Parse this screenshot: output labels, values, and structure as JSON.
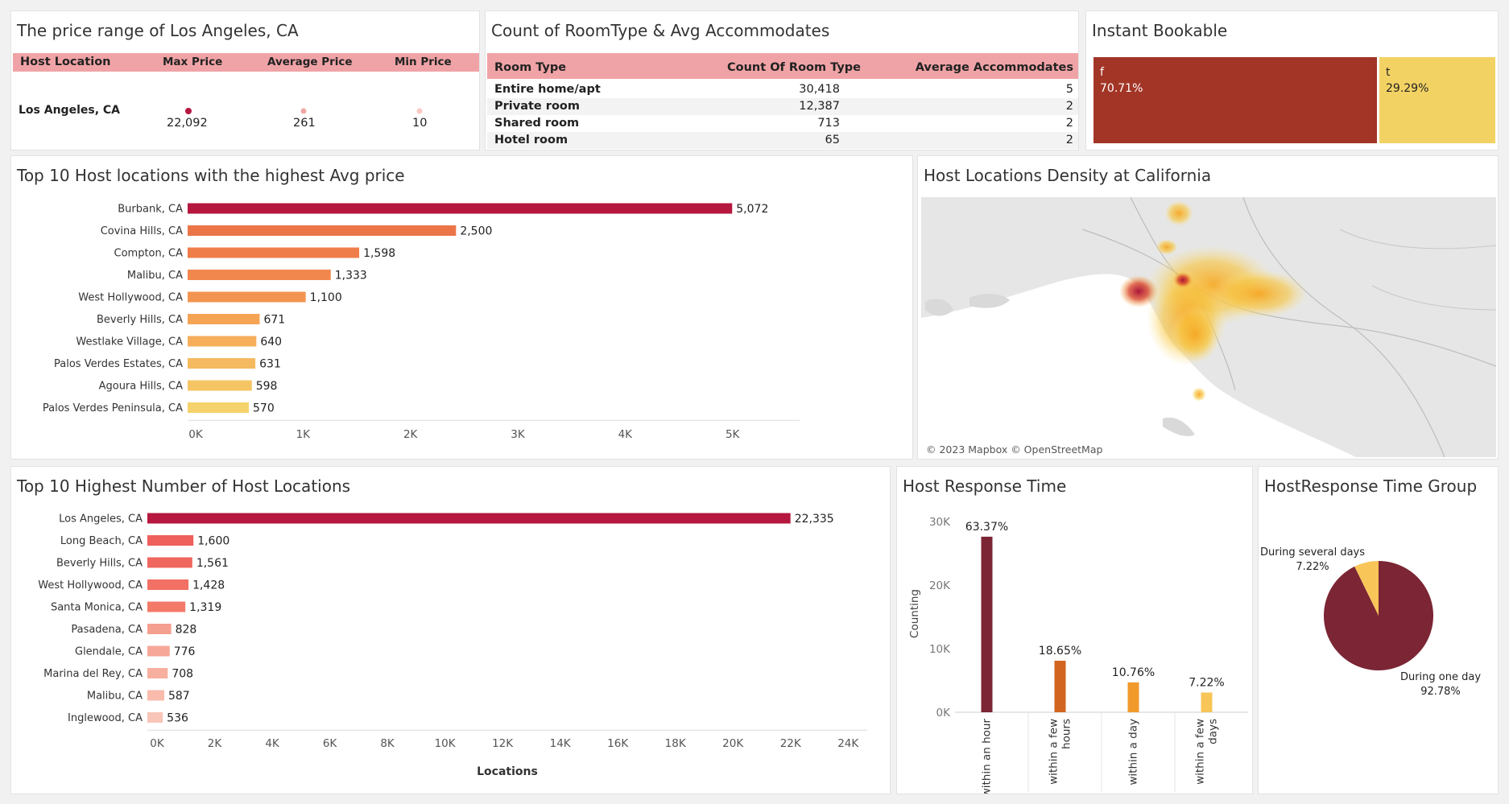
{
  "colors": {
    "accent": "#b5173f",
    "header_pink": "#f0a3a6",
    "instant_f": "#a23526",
    "instant_t": "#f3d264",
    "response_bar_colors": [
      "#7b2535",
      "#d2651f",
      "#f2992c",
      "#f8c559"
    ],
    "pie_main": "#7b2535",
    "pie_small": "#f8c559"
  },
  "price_range": {
    "title": "The price range of Los Angeles, CA",
    "headers": [
      "Host Location",
      "Max Price",
      "Average Price",
      "Min Price"
    ],
    "location": "Los Angeles, CA",
    "max_label": "22,092",
    "avg_label": "261",
    "min_label": "10"
  },
  "roomtype": {
    "title": "Count of RoomType & Avg Accommodates",
    "headers": [
      "Room Type",
      "Count Of Room Type",
      "Average Accommodates"
    ],
    "rows": [
      {
        "type": "Entire home/apt",
        "count": "30,418",
        "avg": "5"
      },
      {
        "type": "Private room",
        "count": "12,387",
        "avg": "2"
      },
      {
        "type": "Shared room",
        "count": "713",
        "avg": "2"
      },
      {
        "type": "Hotel room",
        "count": "65",
        "avg": "2"
      }
    ]
  },
  "instant": {
    "title": "Instant Bookable",
    "f_label": "f",
    "f_pct": "70.71%",
    "t_label": "t",
    "t_pct": "29.29%"
  },
  "map": {
    "title": "Host Locations Density at California",
    "credit": "© 2023 Mapbox © OpenStreetMap"
  },
  "chart_data": [
    {
      "type": "bar",
      "orientation": "horizontal",
      "title": "Top 10 Host locations with the highest Avg price",
      "categories": [
        "Burbank, CA",
        "Covina Hills, CA",
        "Compton, CA",
        "Malibu, CA",
        "West Hollywood, CA",
        "Beverly Hills, CA",
        "Westlake Village, CA",
        "Palos Verdes Estates, CA",
        "Agoura Hills, CA",
        "Palos Verdes Peninsula, CA"
      ],
      "values": [
        5072,
        2500,
        1598,
        1333,
        1100,
        671,
        640,
        631,
        598,
        570
      ],
      "value_labels": [
        "5,072",
        "2,500",
        "1,598",
        "1,333",
        "1,100",
        "671",
        "640",
        "631",
        "598",
        "570"
      ],
      "colors": [
        "#b5173f",
        "#ec7548",
        "#ef7d4a",
        "#f1874d",
        "#f39450",
        "#f5a456",
        "#f6ae5b",
        "#f5b95f",
        "#f5c564",
        "#f5d26b"
      ],
      "xticks": [
        0,
        1000,
        2000,
        3000,
        4000,
        5000
      ],
      "xtick_labels": [
        "0K",
        "1K",
        "2K",
        "3K",
        "4K",
        "5K"
      ],
      "xlim": [
        0,
        5700
      ]
    },
    {
      "type": "bar",
      "orientation": "horizontal",
      "title": "Top 10 Highest Number of Host Locations",
      "categories": [
        "Los Angeles, CA",
        "Long Beach, CA",
        "Beverly Hills, CA",
        "West Hollywood, CA",
        "Santa Monica, CA",
        "Pasadena, CA",
        "Glendale, CA",
        "Marina del Rey, CA",
        "Malibu, CA",
        "Inglewood, CA"
      ],
      "values": [
        22335,
        1600,
        1561,
        1428,
        1319,
        828,
        776,
        708,
        587,
        536
      ],
      "value_labels": [
        "22,335",
        "1,600",
        "1,561",
        "1,428",
        "1,319",
        "828",
        "776",
        "708",
        "587",
        "536"
      ],
      "colors": [
        "#b5173f",
        "#ef5f5b",
        "#f0675f",
        "#f27064",
        "#f37a69",
        "#f59f90",
        "#f6a797",
        "#f7b09f",
        "#f8bbac",
        "#f9c5b9"
      ],
      "xticks": [
        0,
        2000,
        4000,
        6000,
        8000,
        10000,
        12000,
        14000,
        16000,
        18000,
        20000,
        22000,
        24000
      ],
      "xtick_labels": [
        "0K",
        "2K",
        "4K",
        "6K",
        "8K",
        "10K",
        "12K",
        "14K",
        "16K",
        "18K",
        "20K",
        "22K",
        "24K"
      ],
      "xlabel": "Locations",
      "xlim": [
        0,
        25000
      ]
    },
    {
      "type": "bar",
      "title": "Host Response Time",
      "categories": [
        "within an hour",
        "within a few hours",
        "within a day",
        "within a few days"
      ],
      "category_lines": [
        [
          "within an hour"
        ],
        [
          "within a few",
          "hours"
        ],
        [
          "within a day"
        ],
        [
          "within a few",
          "days"
        ]
      ],
      "values": [
        27600,
        8100,
        4700,
        3100
      ],
      "pct_labels": [
        "63.37%",
        "18.65%",
        "10.76%",
        "7.22%"
      ],
      "ylabel": "Counting",
      "yticks": [
        0,
        10000,
        20000,
        30000
      ],
      "ytick_labels": [
        "0K",
        "10K",
        "20K",
        "30K"
      ],
      "ylim": [
        0,
        31000
      ]
    },
    {
      "type": "pie",
      "title": "HostResponse Time Group",
      "slices": [
        {
          "label": "During one day",
          "value": 92.78,
          "pct_label": "92.78%"
        },
        {
          "label": "During several days",
          "value": 7.22,
          "pct_label": "7.22%"
        }
      ]
    }
  ]
}
